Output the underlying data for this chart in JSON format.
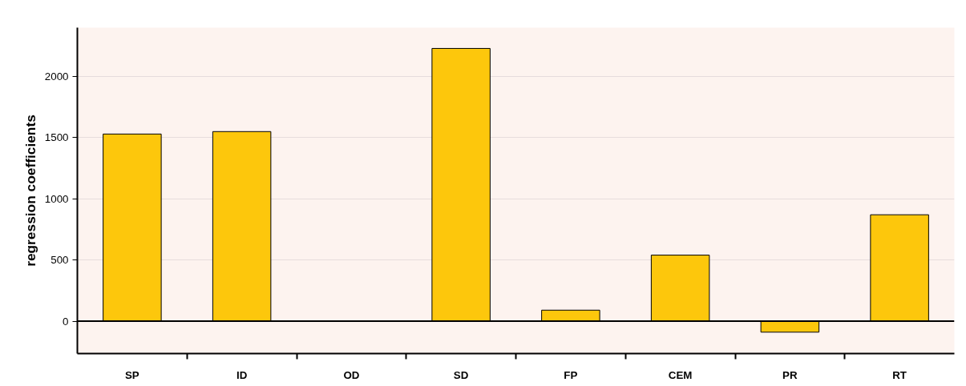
{
  "chart_data": {
    "type": "bar",
    "ylabel": "regression coefficients",
    "categories": [
      "SP",
      "ID",
      "OD",
      "SD",
      "FP",
      "CEM",
      "PR",
      "RT"
    ],
    "values": [
      1530,
      1550,
      null,
      2230,
      90,
      540,
      -90,
      870
    ],
    "color": "#fdc70c",
    "ylim": [
      -265,
      2400
    ],
    "yticks": [
      0,
      500,
      1000,
      1500,
      2000
    ],
    "grid": "y",
    "ref_lines": [
      {
        "axis": "y",
        "value": 0,
        "color": "#000000"
      }
    ]
  }
}
